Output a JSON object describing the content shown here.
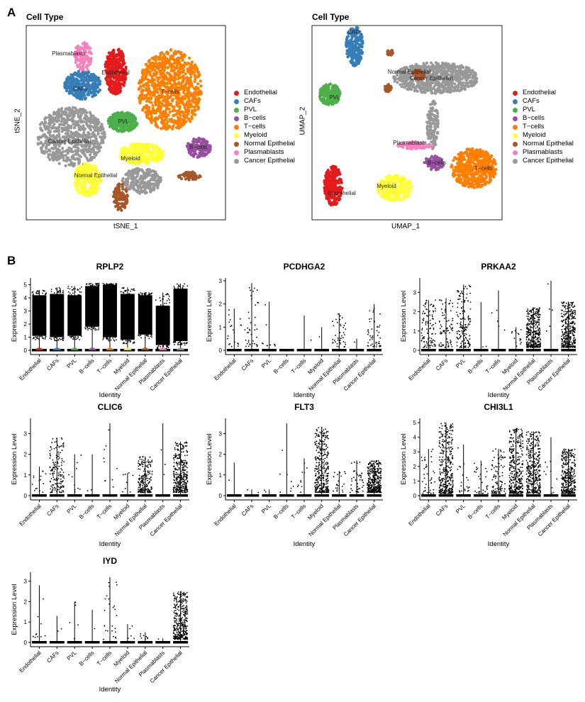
{
  "panel_labels": [
    "A",
    "B"
  ],
  "colors": {
    "Endothelial": "#E41A1C",
    "CAFs": "#377EB8",
    "PVL": "#4DAF4A",
    "B-cells": "#984EA3",
    "T-cells": "#FF7F00",
    "Myeloid": "#FFFF33",
    "Normal Epithelial": "#A65628",
    "Plasmablasts": "#F781BF",
    "Cancer Epithelial": "#999999"
  },
  "chart_data": [
    {
      "type": "scatter",
      "title": "Cell Type",
      "xlabel": "tSNE_1",
      "ylabel": "tSNE_2",
      "legend_placement": "right",
      "legend": [
        "Endothelial",
        "CAFs",
        "PVL",
        "B−cells",
        "T−cells",
        "Myeloid",
        "Normal Epithelial",
        "Plasmablasts",
        "Cancer Epithelial"
      ],
      "cluster_labels": [
        "Plasmablasts",
        "Endothelial",
        "CAFs",
        "T−cells",
        "PVL",
        "Cancer Epithelial",
        "B−cells",
        "Myeloid",
        "Normal Epithelial"
      ]
    },
    {
      "type": "scatter",
      "title": "Cell Type",
      "xlabel": "UMAP_1",
      "ylabel": "UMAP_2",
      "legend_placement": "right",
      "legend": [
        "Endothelial",
        "CAFs",
        "PVL",
        "B−cells",
        "T−cells",
        "Myeloid",
        "Normal Epithelial",
        "Plasmablasts",
        "Cancer Epithelial"
      ],
      "cluster_labels": [
        "CAFs",
        "Normal Epithelial",
        "Cancer Epithelial",
        "PVL",
        "Plasmablasts",
        "T−cells",
        "B−cells",
        "Myeloid",
        "Endothelial"
      ]
    },
    {
      "type": "violin",
      "categories": [
        "Endothelial",
        "CAFs",
        "PVL",
        "B−cells",
        "T−cells",
        "Myeloid",
        "Normal Epithelial",
        "Plasmablasts",
        "Cancer Epithelial"
      ],
      "xlabel": "Identity",
      "ylabel": "Expression Level",
      "panels": [
        {
          "gene": "RPLP2",
          "yticks": [
            "0",
            "1",
            "2",
            "3",
            "4",
            "5"
          ],
          "ylim": [
            0,
            5.3
          ],
          "max": [
            4.6,
            4.8,
            4.9,
            5.1,
            5.1,
            4.8,
            4.4,
            4.4,
            5.1
          ],
          "dense_low": [
            1.1,
            1.0,
            1.1,
            1.8,
            1.0,
            0.8,
            1.2,
            0.4,
            0.7
          ],
          "dense_high": [
            4.2,
            4.3,
            4.2,
            4.9,
            5.0,
            4.3,
            4.2,
            3.4,
            4.7
          ]
        },
        {
          "gene": "PCDHGA2",
          "yticks": [
            "0",
            "1",
            "2",
            "3"
          ],
          "ylim": [
            0,
            3
          ],
          "max": [
            1.8,
            2.9,
            2.1,
            0,
            1.5,
            1.0,
            1.6,
            0.5,
            2.0
          ],
          "n_nonzero": [
            20,
            40,
            10,
            0,
            1,
            1,
            40,
            1,
            50
          ]
        },
        {
          "gene": "PRKAA2",
          "yticks": [
            "0",
            "1",
            "2",
            "3"
          ],
          "ylim": [
            0,
            3.6
          ],
          "max": [
            2.6,
            2.7,
            3.4,
            2.5,
            3.1,
            1.2,
            2.2,
            3.6,
            2.5
          ],
          "n_nonzero": [
            100,
            80,
            150,
            2,
            5,
            15,
            400,
            5,
            1500
          ]
        },
        {
          "gene": "CLIC6",
          "yticks": [
            "0",
            "1",
            "2",
            "3"
          ],
          "ylim": [
            0,
            3.6
          ],
          "max": [
            1.4,
            2.8,
            2.0,
            2.0,
            3.5,
            1.1,
            1.9,
            3.5,
            2.6
          ],
          "n_nonzero": [
            15,
            150,
            10,
            2,
            10,
            8,
            200,
            3,
            1500
          ]
        },
        {
          "gene": "FLT3",
          "yticks": [
            "0",
            "1",
            "2",
            "3"
          ],
          "ylim": [
            0,
            3.6
          ],
          "max": [
            1.6,
            0.3,
            0.3,
            3.5,
            1.8,
            3.3,
            1.2,
            1.7,
            1.7
          ],
          "n_nonzero": [
            1,
            2,
            2,
            8,
            10,
            500,
            20,
            40,
            500
          ]
        },
        {
          "gene": "CHI3L1",
          "yticks": [
            "0",
            "1",
            "2",
            "3",
            "4",
            "5"
          ],
          "ylim": [
            0,
            5.1
          ],
          "max": [
            3.2,
            5.0,
            3.5,
            2.4,
            3.2,
            4.6,
            4.4,
            4.0,
            3.2
          ],
          "n_nonzero": [
            40,
            500,
            20,
            30,
            100,
            1000,
            1500,
            10,
            1500
          ]
        },
        {
          "gene": "IYD",
          "yticks": [
            "0",
            "1",
            "2",
            "3"
          ],
          "ylim": [
            0,
            3.3
          ],
          "max": [
            2.8,
            1.3,
            2.0,
            1.6,
            3.2,
            0.9,
            0.5,
            0.2,
            2.5
          ],
          "n_nonzero": [
            10,
            2,
            5,
            1,
            25,
            5,
            8,
            1,
            500
          ]
        }
      ]
    }
  ]
}
